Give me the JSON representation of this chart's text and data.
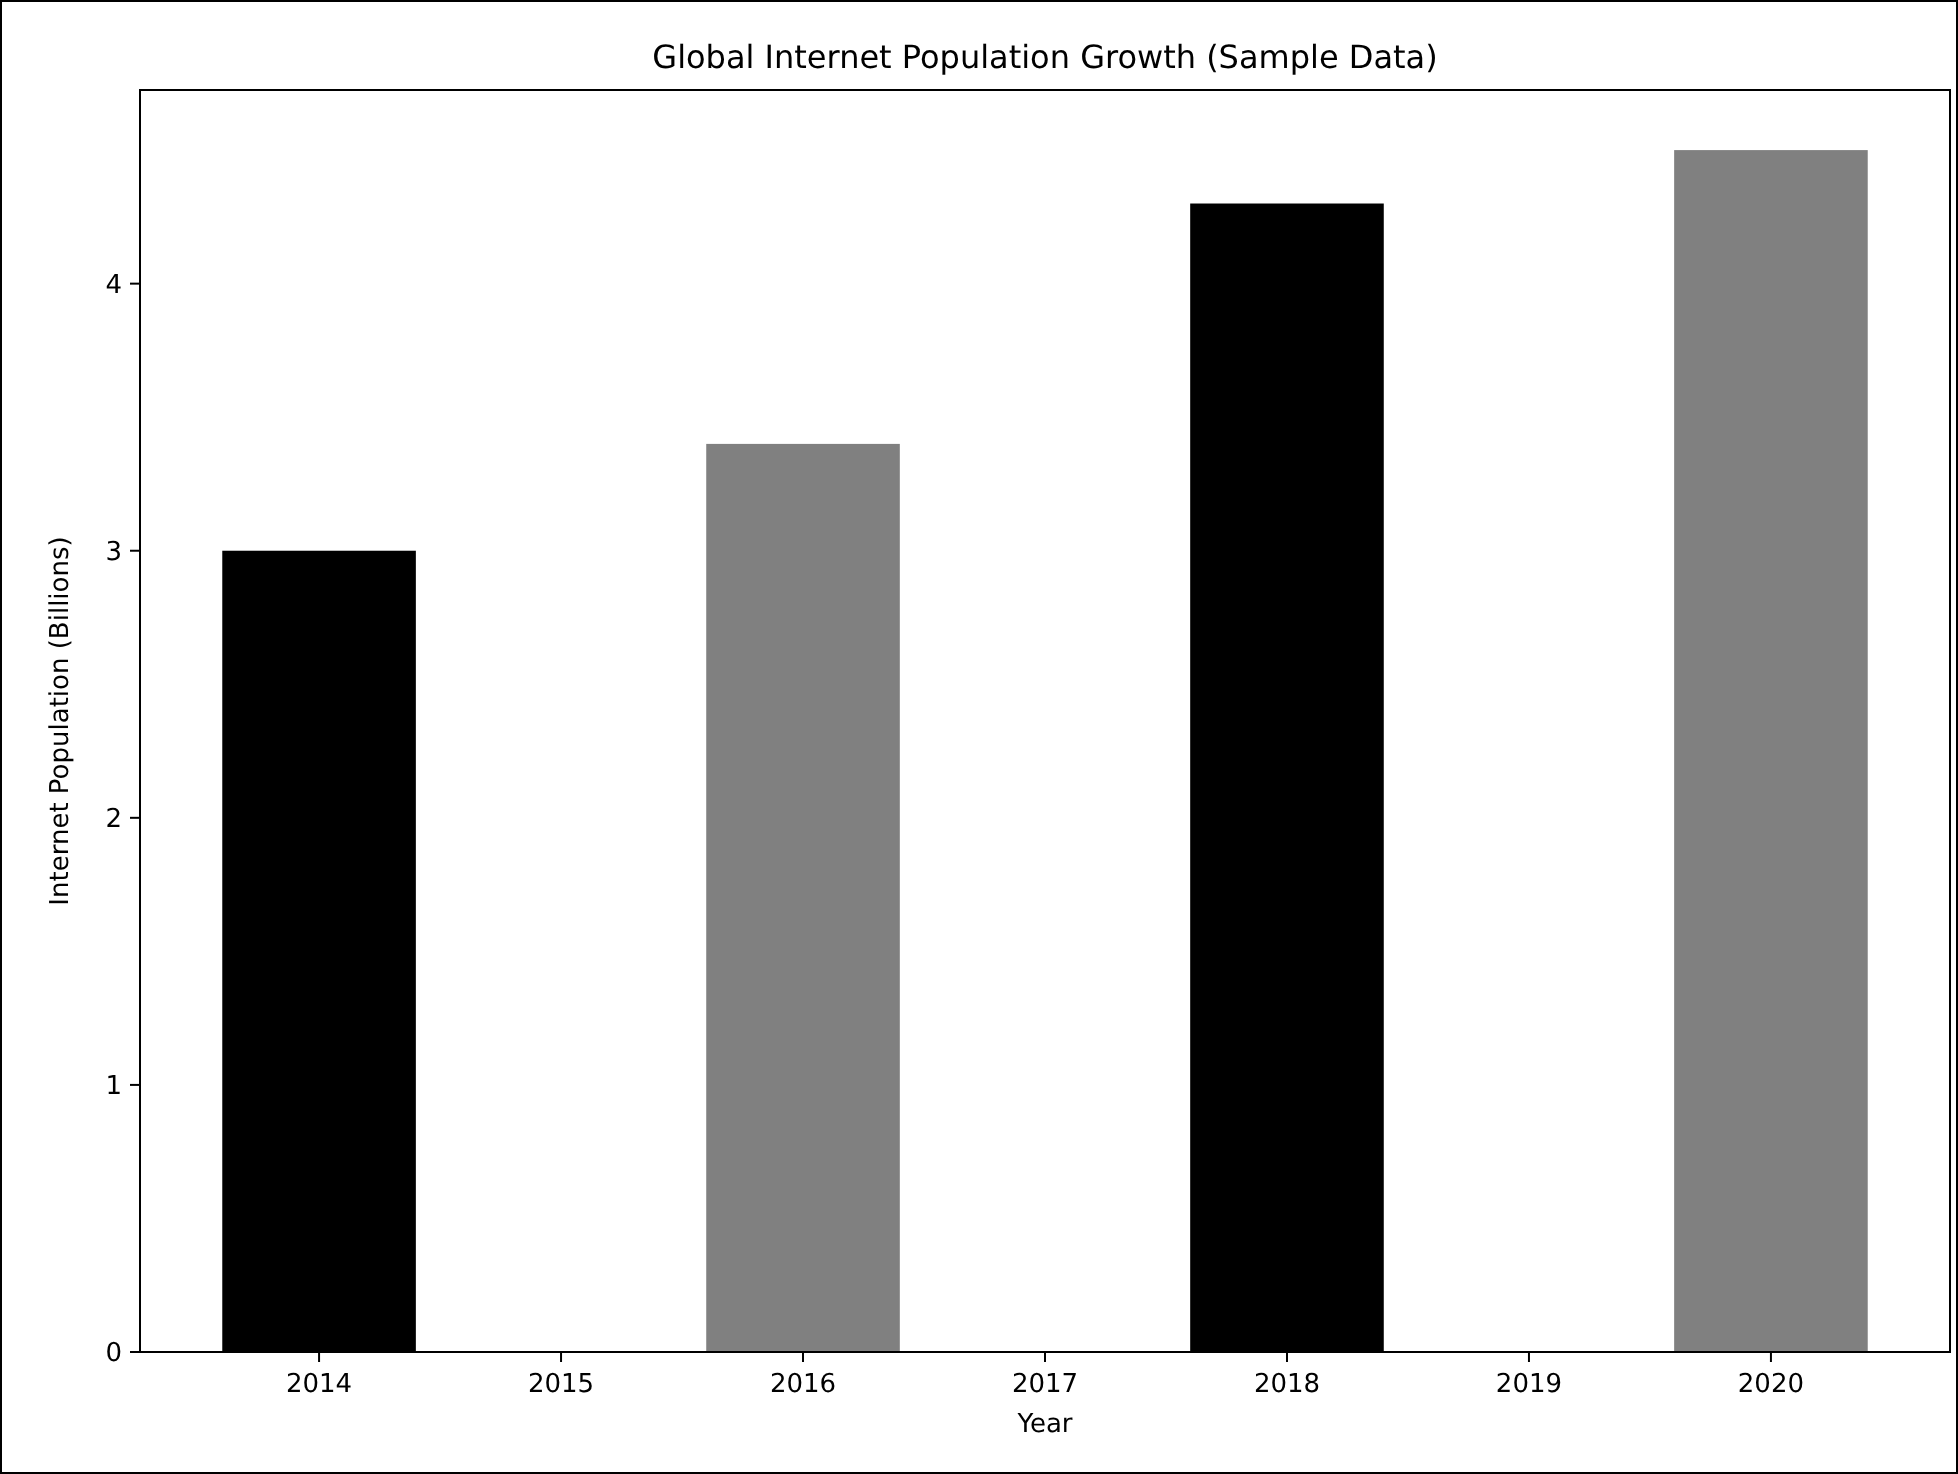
{
  "chart_data": {
    "type": "bar",
    "title": "Global Internet Population Growth (Sample Data)",
    "xlabel": "Year",
    "ylabel": "Internet Population (Billions)",
    "x": [
      2014,
      2016,
      2018,
      2020
    ],
    "values": [
      3.0,
      3.4,
      4.3,
      4.5
    ],
    "colors": [
      "#000000",
      "#808080",
      "#000000",
      "#808080"
    ],
    "xlim": [
      2013.26,
      2020.74
    ],
    "xticks": [
      2014,
      2015,
      2016,
      2017,
      2018,
      2019,
      2020
    ],
    "ylim": [
      0,
      4.725
    ],
    "yticks": [
      0,
      1,
      2,
      3,
      4
    ]
  }
}
